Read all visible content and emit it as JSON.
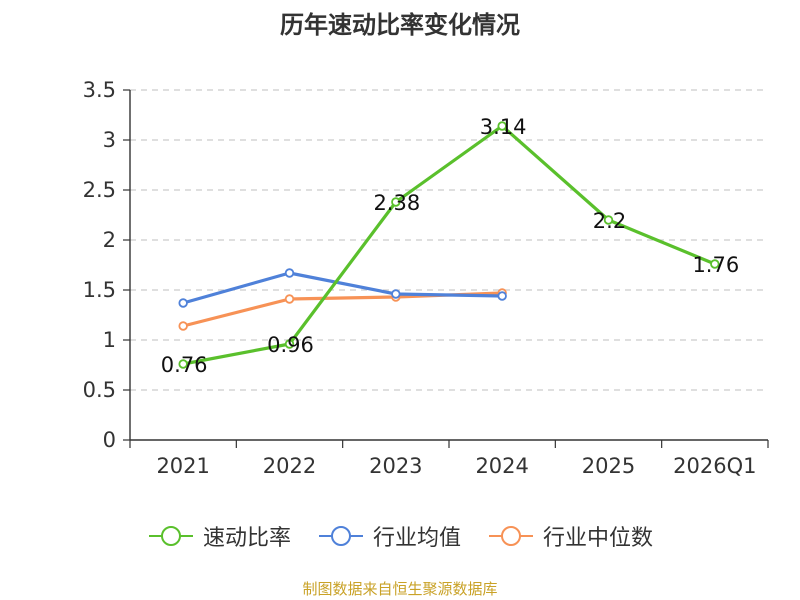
{
  "title": "历年速动比率变化情况",
  "source": "制图数据来自恒生聚源数据库",
  "colors": {
    "axis": "#333333",
    "grid": "#cccccc",
    "quick_ratio": "#5ac02c",
    "industry_avg": "#4f81d9",
    "industry_median": "#f79256"
  },
  "chart_data": {
    "type": "line",
    "categories": [
      "2021",
      "2022",
      "2023",
      "2024",
      "2025",
      "2026Q1"
    ],
    "ylim": [
      0,
      3.5
    ],
    "yticks": [
      "0",
      "0.5",
      "1",
      "1.5",
      "2",
      "2.5",
      "3",
      "3.5"
    ],
    "ytick_values": [
      0,
      0.5,
      1,
      1.5,
      2,
      2.5,
      3,
      3.5
    ],
    "grid": true,
    "legend_position": "bottom",
    "series": [
      {
        "name": "速动比率",
        "color_key": "quick_ratio",
        "values": [
          0.76,
          0.96,
          2.38,
          3.14,
          2.2,
          1.76
        ],
        "labels": [
          "0.76",
          "0.96",
          "2.38",
          "3.14",
          "2.2",
          "1.76"
        ],
        "show_labels": true
      },
      {
        "name": "行业均值",
        "color_key": "industry_avg",
        "values": [
          1.37,
          1.67,
          1.46,
          1.44,
          null,
          null
        ],
        "show_labels": false
      },
      {
        "name": "行业中位数",
        "color_key": "industry_median",
        "values": [
          1.14,
          1.41,
          1.43,
          1.47,
          null,
          null
        ],
        "show_labels": false
      }
    ]
  }
}
